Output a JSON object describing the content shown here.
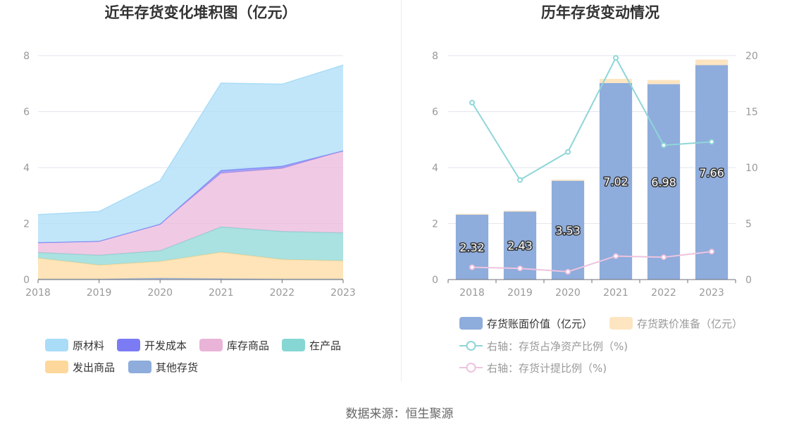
{
  "left": {
    "title": "近年存货变化堆积图（亿元）",
    "legend": [
      {
        "label": "原材料",
        "color": "#a8dcf7"
      },
      {
        "label": "开发成本",
        "color": "#7b7cf4"
      },
      {
        "label": "库存商品",
        "color": "#eab4d9"
      },
      {
        "label": "在产品",
        "color": "#86d6d4"
      },
      {
        "label": "发出商品",
        "color": "#fdd89a"
      },
      {
        "label": "其他存货",
        "color": "#8eacdc"
      }
    ]
  },
  "right": {
    "title": "历年存货变动情况",
    "legend": [
      {
        "label": "存货账面价值（亿元）",
        "color": "#8eacdc",
        "kind": "bar"
      },
      {
        "label": "存货跌价准备（亿元）",
        "color": "#fde5c2",
        "kind": "bar"
      },
      {
        "label": "右轴：存货占净资产比例（%)",
        "color": "#8fd6d8",
        "kind": "line"
      },
      {
        "label": "右轴：存货计提比例（%)",
        "color": "#eec3de",
        "kind": "line"
      }
    ]
  },
  "footer": "数据来源：恒生聚源",
  "chart_data": [
    {
      "type": "area",
      "title": "近年存货变化堆积图（亿元）",
      "stacked": true,
      "categories": [
        "2018",
        "2019",
        "2020",
        "2021",
        "2022",
        "2023"
      ],
      "ylim": [
        0,
        8
      ],
      "yticks": [
        0,
        2,
        4,
        6,
        8
      ],
      "series": [
        {
          "name": "其他存货",
          "color": "#8eacdc",
          "values": [
            0.02,
            0.02,
            0.05,
            0.03,
            0.02,
            0.02
          ]
        },
        {
          "name": "发出商品",
          "color": "#fdd89a",
          "values": [
            0.75,
            0.5,
            0.6,
            0.95,
            0.7,
            0.65
          ]
        },
        {
          "name": "在产品",
          "color": "#86d6d4",
          "values": [
            0.2,
            0.35,
            0.38,
            0.9,
            1.0,
            1.0
          ]
        },
        {
          "name": "库存商品",
          "color": "#eab4d9",
          "values": [
            0.35,
            0.5,
            0.95,
            1.92,
            2.25,
            2.93
          ]
        },
        {
          "name": "开发成本",
          "color": "#7b7cf4",
          "values": [
            0,
            0,
            0,
            0.1,
            0.08,
            0
          ]
        },
        {
          "name": "原材料",
          "color": "#a8dcf7",
          "values": [
            1.0,
            1.06,
            1.55,
            3.12,
            2.93,
            3.06
          ]
        }
      ]
    },
    {
      "type": "bar",
      "title": "历年存货变动情况",
      "stacked": true,
      "categories": [
        "2018",
        "2019",
        "2020",
        "2021",
        "2022",
        "2023"
      ],
      "ylim": [
        0,
        8
      ],
      "yticks": [
        0,
        2,
        4,
        6,
        8
      ],
      "y2lim": [
        0,
        20
      ],
      "y2ticks": [
        0,
        5,
        10,
        15,
        20
      ],
      "series": [
        {
          "name": "存货账面价值（亿元）",
          "type": "bar",
          "axis": "left",
          "color": "#8eacdc",
          "values": [
            2.32,
            2.43,
            3.53,
            7.02,
            6.98,
            7.66
          ],
          "labels": [
            "2.32",
            "2.43",
            "3.53",
            "7.02",
            "6.98",
            "7.66"
          ]
        },
        {
          "name": "存货跌价准备（亿元）",
          "type": "bar",
          "axis": "left",
          "color": "#fde5c2",
          "values": [
            0.03,
            0.03,
            0.04,
            0.15,
            0.15,
            0.2
          ]
        },
        {
          "name": "右轴：存货占净资产比例（%)",
          "type": "line",
          "axis": "right",
          "color": "#8fd6d8",
          "values": [
            15.8,
            8.9,
            11.4,
            19.8,
            12.0,
            12.3
          ]
        },
        {
          "name": "右轴：存货计提比例（%)",
          "type": "line",
          "axis": "right",
          "color": "#eec3de",
          "values": [
            1.1,
            1.0,
            0.7,
            2.1,
            2.0,
            2.5
          ]
        }
      ]
    }
  ]
}
